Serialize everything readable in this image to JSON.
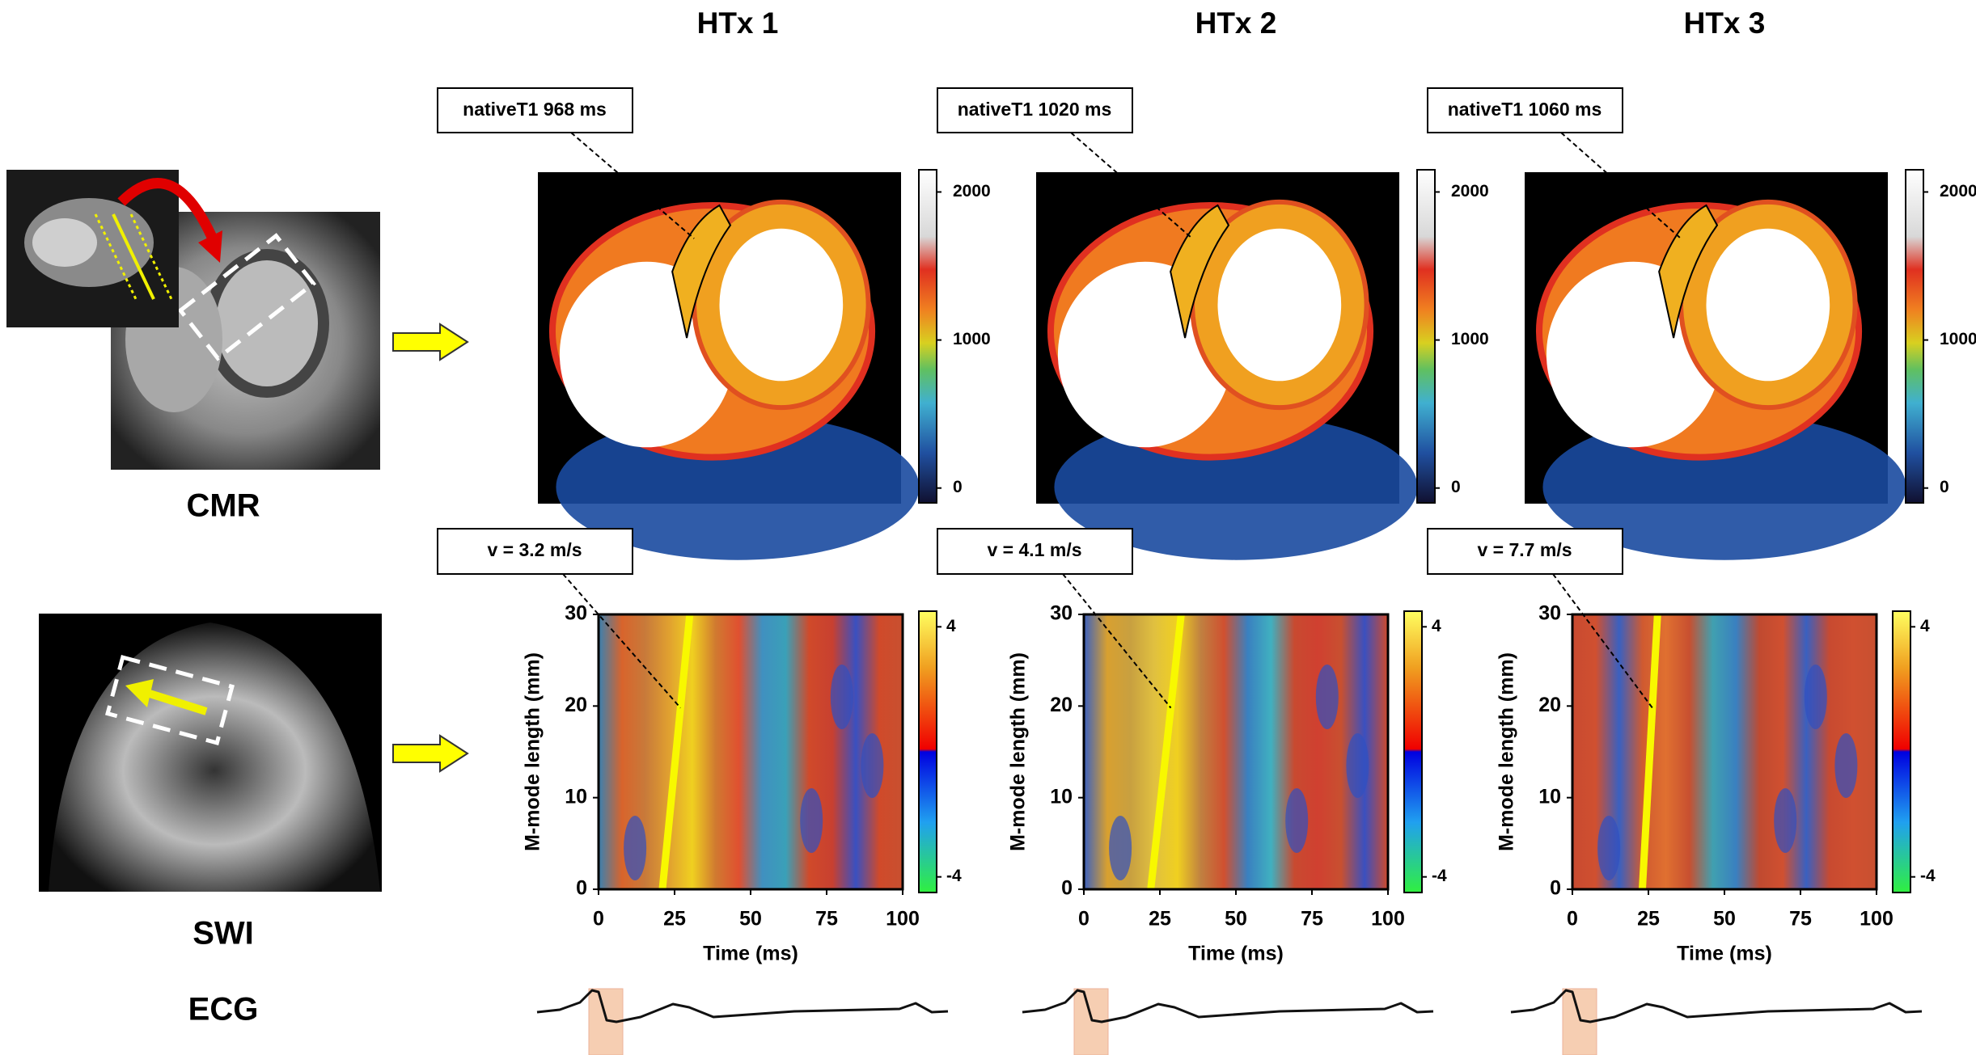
{
  "column_titles": [
    "HTx 1",
    "HTx 2",
    "HTx 3"
  ],
  "row_labels": {
    "cmr": "CMR",
    "swi": "SWI",
    "ecg": "ECG"
  },
  "t1_annotations": [
    "nativeT1 968 ms",
    "nativeT1 1020 ms",
    "nativeT1 1060 ms"
  ],
  "t1_colorbar": {
    "lim": [
      -100,
      2150
    ],
    "ticks": [
      0,
      1000,
      2000
    ]
  },
  "chart_data": [
    {
      "type": "heatmap",
      "annotation": "v = 3.2 m/s",
      "x_label": "Time (ms)",
      "y_label": "M-mode length (mm)",
      "xlim": [
        0,
        100
      ],
      "xticks": [
        0,
        25,
        50,
        75,
        100
      ],
      "ylim": [
        0,
        30
      ],
      "yticks": [
        0,
        10,
        20,
        30
      ],
      "colorbar": {
        "lim": [
          -4.5,
          4.5
        ],
        "ticks": [
          -4,
          4
        ]
      }
    },
    {
      "type": "heatmap",
      "annotation": "v = 4.1 m/s",
      "x_label": "Time (ms)",
      "y_label": "M-mode length (mm)",
      "xlim": [
        0,
        100
      ],
      "xticks": [
        0,
        25,
        50,
        75,
        100
      ],
      "ylim": [
        0,
        30
      ],
      "yticks": [
        0,
        10,
        20,
        30
      ],
      "colorbar": {
        "lim": [
          -4.5,
          4.5
        ],
        "ticks": [
          -4,
          4
        ]
      }
    },
    {
      "type": "heatmap",
      "annotation": "v = 7.7 m/s",
      "x_label": "Time (ms)",
      "y_label": "M-mode length (mm)",
      "xlim": [
        0,
        100
      ],
      "xticks": [
        0,
        25,
        50,
        75,
        100
      ],
      "ylim": [
        0,
        30
      ],
      "yticks": [
        0,
        10,
        20,
        30
      ],
      "colorbar": {
        "lim": [
          -4.5,
          4.5
        ],
        "ticks": [
          -4,
          4
        ]
      }
    }
  ]
}
